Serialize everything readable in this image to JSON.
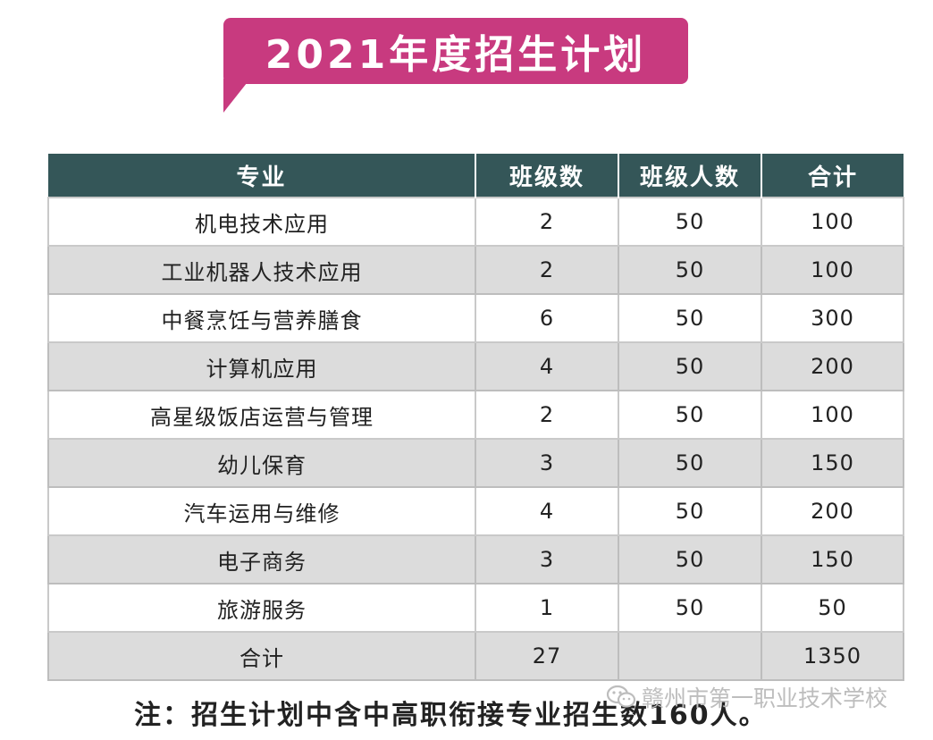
{
  "title": "2021年度招生计划",
  "table": {
    "headers": [
      "专业",
      "班级数",
      "班级人数",
      "合计"
    ],
    "rows": [
      {
        "major": "机电技术应用",
        "classes": "2",
        "per_class": "50",
        "total": "100"
      },
      {
        "major": "工业机器人技术应用",
        "classes": "2",
        "per_class": "50",
        "total": "100"
      },
      {
        "major": "中餐烹饪与营养膳食",
        "classes": "6",
        "per_class": "50",
        "total": "300"
      },
      {
        "major": "计算机应用",
        "classes": "4",
        "per_class": "50",
        "total": "200"
      },
      {
        "major": "高星级饭店运营与管理",
        "classes": "2",
        "per_class": "50",
        "total": "100"
      },
      {
        "major": "幼儿保育",
        "classes": "3",
        "per_class": "50",
        "total": "150"
      },
      {
        "major": "汽车运用与维修",
        "classes": "4",
        "per_class": "50",
        "total": "200"
      },
      {
        "major": "电子商务",
        "classes": "3",
        "per_class": "50",
        "total": "150"
      },
      {
        "major": "旅游服务",
        "classes": "1",
        "per_class": "50",
        "total": "50"
      }
    ],
    "summary": {
      "label": "合计",
      "classes": "27",
      "per_class": "",
      "total": "1350"
    }
  },
  "note": "注：招生计划中含中高职衔接专业招生数160人。",
  "watermark": {
    "icon": "wechat-icon",
    "text": "赣州市第一职业技术学校"
  },
  "colors": {
    "banner": "#c83a7f",
    "header": "#345658",
    "stripe": "#dcdcdc"
  }
}
